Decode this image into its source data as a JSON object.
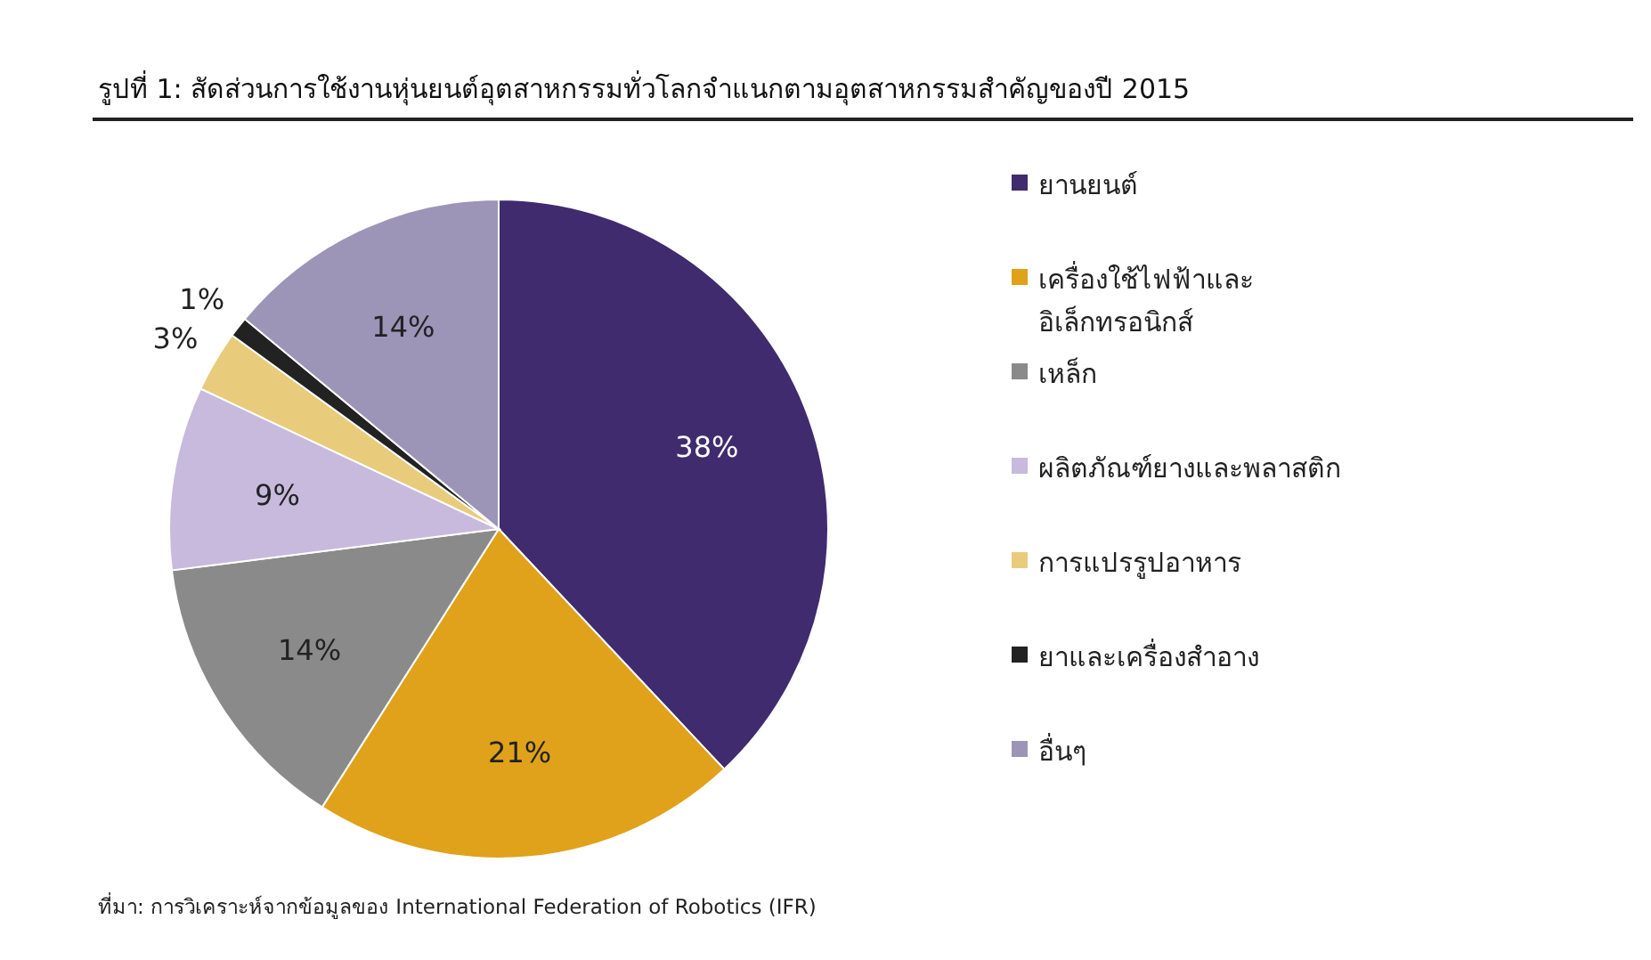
{
  "chart_data": {
    "type": "pie",
    "title": "รูปที่ 1: สัดส่วนการใช้งานหุ่นยนต์อุตสาหกรรมทั่วโลกจำแนกตามอุตสาหกรรมสำคัญของปี 2015",
    "categories": [
      "ยานยนต์",
      "เครื่องใช้ไฟฟ้าและอิเล็กทรอนิกส์",
      "เหล็ก",
      "ผลิตภัณฑ์ยางและพลาสติก",
      "การแปรรูปอาหาร",
      "ยาและเครื่องสำอาง",
      "อื่นๆ"
    ],
    "values": [
      38,
      21,
      14,
      9,
      3,
      1,
      14
    ],
    "value_labels": [
      "38%",
      "21%",
      "14%",
      "9%",
      "3%",
      "1%",
      "14%"
    ],
    "colors": [
      "#3f2b6e",
      "#e0a11b",
      "#8a8a8a",
      "#c8badd",
      "#e8cc7c",
      "#222222",
      "#9d95b8"
    ],
    "legend": "right",
    "annotations": [
      "ที่มา: การวิเคราะห์จากข้อมูลของ International Federation of Robotics (IFR)"
    ]
  }
}
